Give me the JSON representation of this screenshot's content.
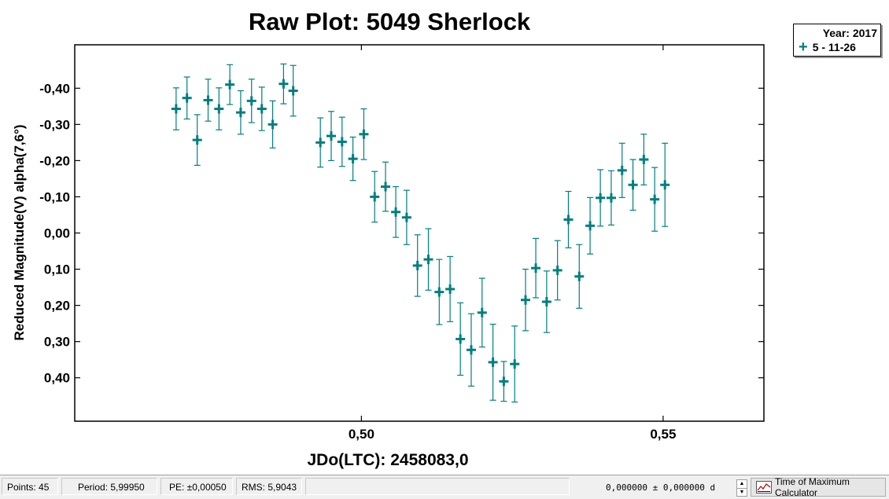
{
  "chart_data": {
    "type": "scatter",
    "title": "Raw Plot: 5049 Sherlock",
    "xlabel": "JDo(LTC): 2458083,0",
    "ylabel": "Reduced Magnitude(V) alpha(7,6°)",
    "xlim": [
      0.4525,
      0.5667
    ],
    "ylim": [
      0.52,
      -0.52
    ],
    "y_inverted": true,
    "x_ticks": [
      0.5,
      0.55
    ],
    "x_tick_labels": [
      "0,50",
      "0,55"
    ],
    "y_ticks": [
      -0.4,
      -0.3,
      -0.2,
      -0.1,
      0.0,
      0.1,
      0.2,
      0.3,
      0.4
    ],
    "y_tick_labels": [
      "-0,40",
      "-0,30",
      "-0,20",
      "-0,10",
      "0,00",
      "0,10",
      "0,20",
      "0,30",
      "0,40"
    ],
    "grid": false,
    "legend_position": "top-right",
    "legend_title": "Year: 2017",
    "series": [
      {
        "name": "5 - 11-26",
        "color": "#007f7f",
        "marker": "plus",
        "error_bars": true,
        "points": [
          {
            "x": 0.4693,
            "y": -0.343,
            "err": 0.058
          },
          {
            "x": 0.4711,
            "y": -0.373,
            "err": 0.058
          },
          {
            "x": 0.4728,
            "y": -0.257,
            "err": 0.07
          },
          {
            "x": 0.4746,
            "y": -0.367,
            "err": 0.058
          },
          {
            "x": 0.4764,
            "y": -0.343,
            "err": 0.058
          },
          {
            "x": 0.4782,
            "y": -0.41,
            "err": 0.055
          },
          {
            "x": 0.48,
            "y": -0.333,
            "err": 0.06
          },
          {
            "x": 0.4818,
            "y": -0.365,
            "err": 0.06
          },
          {
            "x": 0.4835,
            "y": -0.343,
            "err": 0.06
          },
          {
            "x": 0.4853,
            "y": -0.3,
            "err": 0.065
          },
          {
            "x": 0.4871,
            "y": -0.412,
            "err": 0.055
          },
          {
            "x": 0.4887,
            "y": -0.393,
            "err": 0.07
          },
          {
            "x": 0.4932,
            "y": -0.25,
            "err": 0.068
          },
          {
            "x": 0.495,
            "y": -0.268,
            "err": 0.068
          },
          {
            "x": 0.4968,
            "y": -0.252,
            "err": 0.068
          },
          {
            "x": 0.4986,
            "y": -0.205,
            "err": 0.06
          },
          {
            "x": 0.5004,
            "y": -0.273,
            "err": 0.07
          },
          {
            "x": 0.5022,
            "y": -0.1,
            "err": 0.07
          },
          {
            "x": 0.504,
            "y": -0.128,
            "err": 0.068
          },
          {
            "x": 0.5057,
            "y": -0.058,
            "err": 0.07
          },
          {
            "x": 0.5075,
            "y": -0.043,
            "err": 0.075
          },
          {
            "x": 0.5093,
            "y": 0.09,
            "err": 0.085
          },
          {
            "x": 0.5111,
            "y": 0.073,
            "err": 0.085
          },
          {
            "x": 0.5129,
            "y": 0.163,
            "err": 0.09
          },
          {
            "x": 0.5147,
            "y": 0.155,
            "err": 0.09
          },
          {
            "x": 0.5164,
            "y": 0.293,
            "err": 0.1
          },
          {
            "x": 0.5182,
            "y": 0.323,
            "err": 0.1
          },
          {
            "x": 0.52,
            "y": 0.22,
            "err": 0.095
          },
          {
            "x": 0.5218,
            "y": 0.357,
            "err": 0.105
          },
          {
            "x": 0.5236,
            "y": 0.41,
            "err": 0.055
          },
          {
            "x": 0.5254,
            "y": 0.362,
            "err": 0.105
          },
          {
            "x": 0.5272,
            "y": 0.185,
            "err": 0.085
          },
          {
            "x": 0.5289,
            "y": 0.097,
            "err": 0.082
          },
          {
            "x": 0.5307,
            "y": 0.19,
            "err": 0.085
          },
          {
            "x": 0.5325,
            "y": 0.103,
            "err": 0.082
          },
          {
            "x": 0.5343,
            "y": -0.037,
            "err": 0.078
          },
          {
            "x": 0.5361,
            "y": 0.12,
            "err": 0.088
          },
          {
            "x": 0.5379,
            "y": -0.02,
            "err": 0.078
          },
          {
            "x": 0.5396,
            "y": -0.097,
            "err": 0.078
          },
          {
            "x": 0.5414,
            "y": -0.097,
            "err": 0.075
          },
          {
            "x": 0.5432,
            "y": -0.173,
            "err": 0.075
          },
          {
            "x": 0.545,
            "y": -0.133,
            "err": 0.07
          },
          {
            "x": 0.5468,
            "y": -0.203,
            "err": 0.07
          },
          {
            "x": 0.5486,
            "y": -0.093,
            "err": 0.088
          },
          {
            "x": 0.5503,
            "y": -0.133,
            "err": 0.115
          }
        ]
      }
    ]
  },
  "legend": {
    "year": "Year: 2017",
    "entry": "5 - 11-26"
  },
  "status_bar": {
    "points": "Points: 45",
    "period": "Period: 5,99950",
    "pe": "PE: ±0,00050",
    "rms": "RMS: 5,9043",
    "range_readout": "0,000000  ±   0,000000 d",
    "tmc_label": "Time of Maximum Calculator",
    "spinner_up": "▲",
    "spinner_down": "▼"
  }
}
